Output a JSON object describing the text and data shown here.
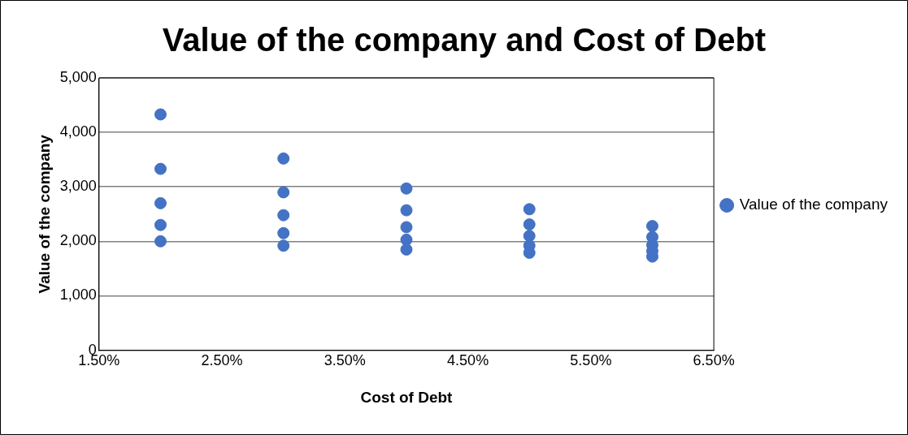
{
  "chart_data": {
    "type": "scatter",
    "title": "Value of the company and Cost of Debt",
    "xlabel": "Cost of Debt",
    "ylabel": "Value of the company",
    "series": [
      {
        "name": "Value of the company",
        "color": "#4472c4",
        "x": [
          2,
          2,
          2,
          2,
          2,
          3,
          3,
          3,
          3,
          3,
          4,
          4,
          4,
          4,
          4,
          5,
          5,
          5,
          5,
          5,
          6,
          6,
          6,
          6,
          6
        ],
        "values": [
          4330,
          3330,
          2700,
          2300,
          2000,
          3520,
          2900,
          2480,
          2150,
          1920,
          2970,
          2570,
          2260,
          2030,
          1850,
          2590,
          2310,
          2100,
          1920,
          1790,
          2280,
          2080,
          1930,
          1820,
          1720
        ]
      }
    ],
    "xlim": [
      1.5,
      6.5
    ],
    "xticks": [
      {
        "value": 1.5,
        "label": "1.50%"
      },
      {
        "value": 2.5,
        "label": "2.50%"
      },
      {
        "value": 3.5,
        "label": "3.50%"
      },
      {
        "value": 4.5,
        "label": "4.50%"
      },
      {
        "value": 5.5,
        "label": "5.50%"
      },
      {
        "value": 6.5,
        "label": "6.50%"
      }
    ],
    "ylim": [
      0,
      5000
    ],
    "yticks": [
      {
        "value": 0,
        "label": "0"
      },
      {
        "value": 1000,
        "label": "1,000"
      },
      {
        "value": 2000,
        "label": "2,000"
      },
      {
        "value": 3000,
        "label": "3,000"
      },
      {
        "value": 4000,
        "label": "4,000"
      },
      {
        "value": 5000,
        "label": "5,000"
      }
    ],
    "grid": "y",
    "legend": "right",
    "marker": "circle"
  }
}
